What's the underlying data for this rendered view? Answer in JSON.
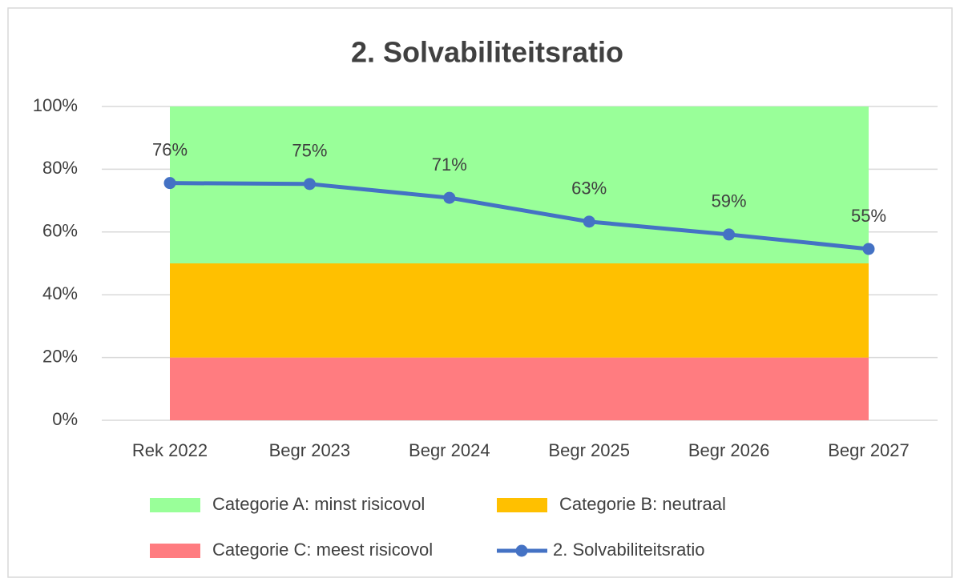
{
  "chart_data": {
    "type": "combo",
    "title": "2. Solvabiliteitsratio",
    "categories": [
      "Rek 2022",
      "Begr 2023",
      "Begr 2024",
      "Begr 2025",
      "Begr 2026",
      "Begr 2027"
    ],
    "ylim": [
      0,
      100
    ],
    "yticks": [
      {
        "value": 0,
        "label": "0%"
      },
      {
        "value": 20,
        "label": "20%"
      },
      {
        "value": 40,
        "label": "40%"
      },
      {
        "value": 60,
        "label": "60%"
      },
      {
        "value": 80,
        "label": "80%"
      },
      {
        "value": 100,
        "label": "100%"
      }
    ],
    "grid": true,
    "series": [
      {
        "name": "Categorie C: meest risicovol",
        "type": "area",
        "color": "#ff7c80",
        "values": [
          20,
          20,
          20,
          20,
          20,
          20
        ]
      },
      {
        "name": "Categorie B: neutraal",
        "type": "area",
        "color": "#ffc000",
        "values": [
          30,
          30,
          30,
          30,
          30,
          30
        ]
      },
      {
        "name": "Categorie A: minst risicovol",
        "type": "area",
        "color": "#99ff99",
        "values": [
          50,
          50,
          50,
          50,
          50,
          50
        ]
      },
      {
        "name": "2. Solvabiliteitsratio",
        "type": "line",
        "color": "#4472c4",
        "values": [
          75.6,
          75.3,
          70.9,
          63.3,
          59.2,
          54.6
        ],
        "value_labels": [
          "76%",
          "75%",
          "71%",
          "63%",
          "59%",
          "55%"
        ]
      }
    ],
    "legend_order": [
      2,
      1,
      0,
      3
    ]
  }
}
